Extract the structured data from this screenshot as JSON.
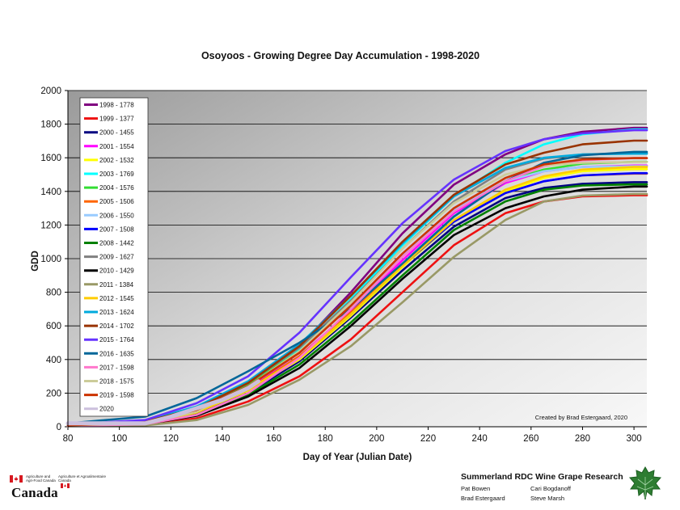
{
  "chart_data": {
    "type": "line",
    "title": "Osoyoos - Growing Degree Day Accumulation - 1998-2020",
    "xlabel": "Day of Year (Julian Date)",
    "ylabel": "GDD",
    "xlim": [
      80,
      305
    ],
    "ylim": [
      0,
      2000
    ],
    "xticks": [
      80,
      100,
      120,
      140,
      160,
      180,
      200,
      220,
      240,
      260,
      280,
      300
    ],
    "yticks": [
      0,
      200,
      400,
      600,
      800,
      1000,
      1200,
      1400,
      1600,
      1800,
      2000
    ],
    "grid": "horizontal",
    "legend_position": "top-left",
    "annotation": "Created by Brad Estergaard, 2020",
    "series": [
      {
        "name": "1998 - 1778",
        "color": "#800080",
        "final": 1778,
        "x": [
          80,
          110,
          130,
          150,
          170,
          190,
          210,
          230,
          250,
          265,
          280,
          300,
          305
        ],
        "y": [
          15,
          30,
          120,
          260,
          480,
          800,
          1150,
          1440,
          1620,
          1710,
          1755,
          1778,
          1778
        ]
      },
      {
        "name": "1999 - 1377",
        "color": "#ee1111",
        "final": 1377,
        "x": [
          80,
          110,
          130,
          150,
          170,
          190,
          210,
          230,
          250,
          265,
          280,
          300,
          305
        ],
        "y": [
          5,
          10,
          50,
          150,
          300,
          520,
          800,
          1080,
          1270,
          1340,
          1370,
          1377,
          1377
        ]
      },
      {
        "name": "2000 - 1455",
        "color": "#000080",
        "final": 1455,
        "x": [
          80,
          110,
          130,
          150,
          170,
          190,
          210,
          230,
          250,
          265,
          280,
          300,
          305
        ],
        "y": [
          8,
          20,
          80,
          200,
          390,
          650,
          930,
          1190,
          1360,
          1420,
          1445,
          1455,
          1455
        ]
      },
      {
        "name": "2001 - 1554",
        "color": "#ff00ff",
        "final": 1554,
        "x": [
          80,
          110,
          130,
          150,
          170,
          190,
          210,
          230,
          250,
          265,
          280,
          300,
          305
        ],
        "y": [
          8,
          25,
          95,
          230,
          420,
          690,
          990,
          1270,
          1450,
          1520,
          1545,
          1554,
          1554
        ]
      },
      {
        "name": "2002 - 1532",
        "color": "#ffff00",
        "final": 1532,
        "x": [
          80,
          110,
          130,
          150,
          170,
          190,
          210,
          230,
          250,
          265,
          280,
          300,
          305
        ],
        "y": [
          8,
          20,
          85,
          215,
          400,
          660,
          950,
          1220,
          1400,
          1480,
          1520,
          1532,
          1532
        ]
      },
      {
        "name": "2003 - 1769",
        "color": "#00ffff",
        "final": 1769,
        "x": [
          80,
          110,
          130,
          150,
          170,
          190,
          210,
          230,
          250,
          265,
          280,
          300,
          305
        ],
        "y": [
          10,
          30,
          110,
          250,
          460,
          760,
          1080,
          1370,
          1570,
          1680,
          1740,
          1769,
          1769
        ]
      },
      {
        "name": "2004 - 1576",
        "color": "#33dd33",
        "final": 1576,
        "x": [
          80,
          110,
          130,
          150,
          170,
          190,
          210,
          230,
          250,
          265,
          280,
          300,
          305
        ],
        "y": [
          10,
          30,
          110,
          250,
          450,
          720,
          1020,
          1290,
          1460,
          1530,
          1565,
          1576,
          1576
        ]
      },
      {
        "name": "2005 - 1506",
        "color": "#ff6600",
        "final": 1506,
        "x": [
          80,
          110,
          130,
          150,
          170,
          190,
          210,
          230,
          250,
          265,
          280,
          300,
          305
        ],
        "y": [
          8,
          25,
          90,
          220,
          420,
          680,
          960,
          1220,
          1390,
          1460,
          1495,
          1506,
          1506
        ]
      },
      {
        "name": "2006 - 1550",
        "color": "#99ccff",
        "final": 1550,
        "x": [
          80,
          110,
          130,
          150,
          170,
          190,
          210,
          230,
          250,
          265,
          280,
          300,
          305
        ],
        "y": [
          10,
          30,
          100,
          240,
          440,
          720,
          1020,
          1290,
          1460,
          1520,
          1545,
          1550,
          1550
        ]
      },
      {
        "name": "2007 - 1508",
        "color": "#0000ff",
        "final": 1508,
        "x": [
          80,
          110,
          130,
          150,
          170,
          190,
          210,
          230,
          250,
          265,
          280,
          300,
          305
        ],
        "y": [
          8,
          25,
          90,
          220,
          410,
          670,
          960,
          1220,
          1390,
          1460,
          1495,
          1508,
          1508
        ]
      },
      {
        "name": "2008 - 1442",
        "color": "#008000",
        "final": 1442,
        "x": [
          80,
          110,
          130,
          150,
          170,
          190,
          210,
          230,
          250,
          265,
          280,
          300,
          305
        ],
        "y": [
          6,
          15,
          70,
          190,
          370,
          620,
          900,
          1170,
          1340,
          1410,
          1435,
          1442,
          1442
        ]
      },
      {
        "name": "2009 - 1627",
        "color": "#808080",
        "final": 1627,
        "x": [
          80,
          110,
          130,
          150,
          170,
          190,
          210,
          230,
          250,
          265,
          280,
          300,
          305
        ],
        "y": [
          10,
          30,
          110,
          260,
          470,
          750,
          1060,
          1340,
          1530,
          1595,
          1620,
          1627,
          1627
        ]
      },
      {
        "name": "2010 - 1429",
        "color": "#000000",
        "final": 1429,
        "x": [
          80,
          110,
          130,
          150,
          170,
          190,
          210,
          230,
          250,
          265,
          280,
          300,
          305
        ],
        "y": [
          6,
          15,
          65,
          180,
          350,
          600,
          880,
          1140,
          1300,
          1370,
          1410,
          1429,
          1429
        ]
      },
      {
        "name": "2011 - 1384",
        "color": "#999966",
        "final": 1384,
        "x": [
          80,
          110,
          130,
          150,
          170,
          190,
          210,
          230,
          250,
          265,
          280,
          300,
          305
        ],
        "y": [
          4,
          8,
          40,
          130,
          280,
          480,
          740,
          1010,
          1230,
          1340,
          1375,
          1384,
          1384
        ]
      },
      {
        "name": "2012 - 1545",
        "color": "#ffcc00",
        "final": 1545,
        "x": [
          80,
          110,
          130,
          150,
          170,
          190,
          210,
          230,
          250,
          265,
          280,
          300,
          305
        ],
        "y": [
          8,
          20,
          85,
          220,
          410,
          670,
          960,
          1230,
          1410,
          1490,
          1530,
          1545,
          1545
        ]
      },
      {
        "name": "2013 - 1624",
        "color": "#00aadd",
        "final": 1624,
        "x": [
          80,
          110,
          130,
          150,
          170,
          190,
          210,
          230,
          250,
          265,
          280,
          300,
          305
        ],
        "y": [
          10,
          35,
          120,
          270,
          490,
          780,
          1090,
          1370,
          1540,
          1600,
          1620,
          1624,
          1624
        ]
      },
      {
        "name": "2014 - 1702",
        "color": "#993300",
        "final": 1702,
        "x": [
          80,
          110,
          130,
          150,
          170,
          190,
          210,
          230,
          250,
          265,
          280,
          300,
          305
        ],
        "y": [
          10,
          30,
          110,
          260,
          480,
          780,
          1100,
          1380,
          1560,
          1630,
          1680,
          1702,
          1702
        ]
      },
      {
        "name": "2015 - 1764",
        "color": "#6633ff",
        "final": 1764,
        "x": [
          80,
          110,
          130,
          150,
          170,
          190,
          210,
          230,
          250,
          265,
          280,
          300,
          305
        ],
        "y": [
          15,
          40,
          140,
          300,
          560,
          890,
          1210,
          1470,
          1640,
          1710,
          1745,
          1764,
          1764
        ]
      },
      {
        "name": "2016 - 1635",
        "color": "#006699",
        "final": 1635,
        "x": [
          80,
          110,
          130,
          150,
          170,
          190,
          210,
          230,
          250,
          265,
          280,
          300,
          305
        ],
        "y": [
          20,
          60,
          170,
          330,
          500,
          700,
          970,
          1250,
          1460,
          1570,
          1615,
          1635,
          1635
        ]
      },
      {
        "name": "2017 - 1598",
        "color": "#ff77cc",
        "final": 1598,
        "x": [
          80,
          110,
          130,
          150,
          170,
          190,
          210,
          230,
          250,
          265,
          280,
          300,
          305
        ],
        "y": [
          5,
          15,
          70,
          200,
          410,
          700,
          1010,
          1280,
          1460,
          1550,
          1585,
          1598,
          1598
        ]
      },
      {
        "name": "2018 - 1575",
        "color": "#cccc99",
        "final": 1575,
        "x": [
          80,
          110,
          130,
          150,
          170,
          190,
          210,
          230,
          250,
          265,
          280,
          300,
          305
        ],
        "y": [
          8,
          20,
          90,
          240,
          450,
          740,
          1060,
          1330,
          1500,
          1555,
          1570,
          1575,
          1575
        ]
      },
      {
        "name": "2019 - 1598",
        "color": "#cc3300",
        "final": 1598,
        "x": [
          80,
          110,
          130,
          150,
          170,
          190,
          210,
          230,
          250,
          265,
          280,
          300,
          305
        ],
        "y": [
          8,
          25,
          100,
          240,
          440,
          720,
          1030,
          1300,
          1480,
          1560,
          1590,
          1598,
          1598
        ]
      },
      {
        "name": "2020",
        "color": "#ccc0dd",
        "final": null,
        "x": [
          80,
          100,
          110,
          120,
          130,
          140,
          150,
          154
        ],
        "y": [
          20,
          20,
          20,
          60,
          110,
          160,
          230,
          270
        ]
      }
    ]
  },
  "footer": {
    "gov_en": "Agriculture and Agri-Food Canada",
    "gov_fr": "Agriculture et Agroalimentaire Canada",
    "canada_wordmark": "Canada",
    "research_title": "Summerland RDC Wine Grape Research",
    "names": [
      "Pat Bowen",
      "Cari Bogdanoff",
      "Brad Estergaard",
      "Steve Marsh"
    ],
    "logo_icon": "grape-leaf-icon",
    "flag_icon": "canada-flag-icon"
  }
}
